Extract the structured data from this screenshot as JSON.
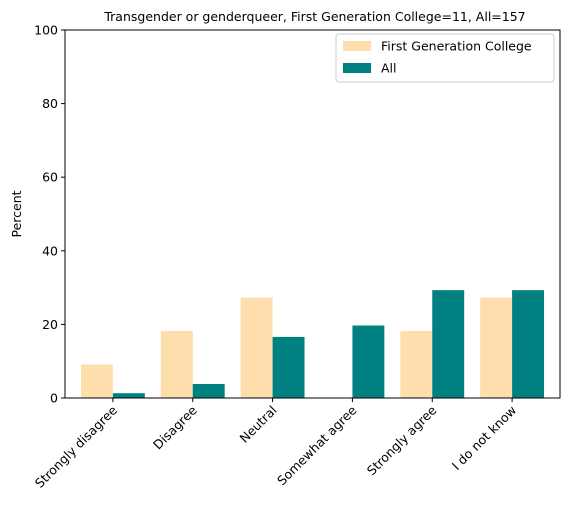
{
  "chart_data": {
    "type": "bar",
    "title": "Transgender or genderqueer, First Generation College=11, All=157",
    "xlabel": "",
    "ylabel": "Percent",
    "ylim": [
      0,
      100
    ],
    "yticks": [
      0,
      20,
      40,
      60,
      80,
      100
    ],
    "grid": false,
    "legend_position": "top-right",
    "categories": [
      "Strongly disagree",
      "Disagree",
      "Neutral",
      "Somewhat agree",
      "Strongly agree",
      "I do not know"
    ],
    "series": [
      {
        "name": "First Generation College",
        "color": "#FFDEAD",
        "values": [
          9.1,
          18.2,
          27.3,
          0,
          18.2,
          27.3
        ]
      },
      {
        "name": "All",
        "color": "#008080",
        "values": [
          1.3,
          3.8,
          16.6,
          19.7,
          29.3,
          29.3
        ]
      }
    ]
  }
}
